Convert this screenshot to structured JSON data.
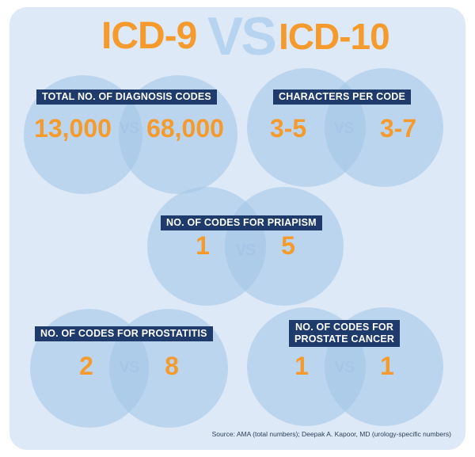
{
  "header": {
    "left": "ICD-9",
    "vs": "VS",
    "right": "ICD-10"
  },
  "comparisons": [
    {
      "label": "TOTAL NO. OF DIAGNOSIS CODES",
      "left": "13,000",
      "vs": "VS",
      "right": "68,000"
    },
    {
      "label": "CHARACTERS PER CODE",
      "left": "3-5",
      "vs": "VS",
      "right": "3-7"
    },
    {
      "label": "NO. OF CODES FOR PRIAPISM",
      "left": "1",
      "vs": "VS",
      "right": "5"
    },
    {
      "label": "NO. OF CODES FOR PROSTATITIS",
      "left": "2",
      "vs": "VS",
      "right": "8"
    },
    {
      "label_line1": "NO. OF CODES FOR",
      "label_line2": "PROSTATE CANCER",
      "left": "1",
      "vs": "VS",
      "right": "1"
    }
  ],
  "source": "Source: AMA (total numbers); Deepak A. Kapoor, MD (urology-specific numbers)",
  "colors": {
    "background": "#dde9f6",
    "circle": "#a0c4e8",
    "label_bg": "#1f3b6c",
    "number": "#f59a2d",
    "vs_text": "#a7c5e7"
  }
}
